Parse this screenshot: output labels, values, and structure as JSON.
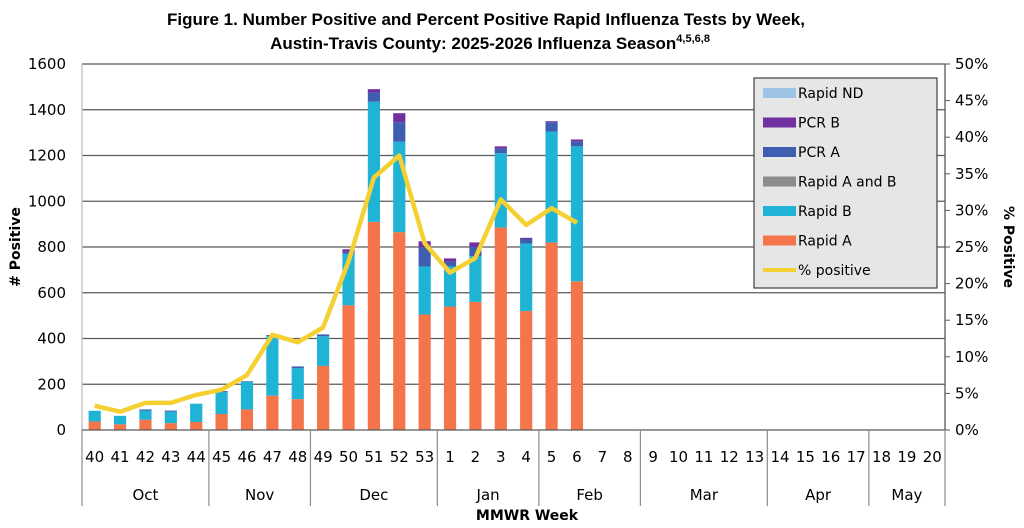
{
  "chart_data": {
    "type": "bar",
    "stacked": true,
    "title_line1": "Figure 1. Number Positive and Percent Positive Rapid Influenza Tests by Week,",
    "title_line2": "Austin-Travis County:  2025-2026 Influenza Season",
    "title_superscript": "4,5,6,8",
    "xlabel": "MMWR Week",
    "ylabel": "# Positive",
    "y2label": "% Positive",
    "ylim": [
      0,
      1600
    ],
    "y_ticks": [
      "0",
      "200",
      "400",
      "600",
      "800",
      "1000",
      "1200",
      "1400",
      "1600"
    ],
    "y2lim": [
      0,
      50
    ],
    "y2_ticks": [
      "0%",
      "5%",
      "10%",
      "15%",
      "20%",
      "25%",
      "30%",
      "35%",
      "40%",
      "45%",
      "50%"
    ],
    "grid": true,
    "legend_position": "top-right",
    "categories": [
      "40",
      "41",
      "42",
      "43",
      "44",
      "45",
      "46",
      "47",
      "48",
      "49",
      "50",
      "51",
      "52",
      "53",
      "1",
      "2",
      "3",
      "4",
      "5",
      "6",
      "7",
      "8",
      "9",
      "10",
      "11",
      "12",
      "13",
      "14",
      "15",
      "16",
      "17",
      "18",
      "19",
      "20"
    ],
    "month_groups": [
      {
        "label": "Oct",
        "weeks": 5
      },
      {
        "label": "Nov",
        "weeks": 4
      },
      {
        "label": "Dec",
        "weeks": 5
      },
      {
        "label": "Jan",
        "weeks": 4
      },
      {
        "label": "Feb",
        "weeks": 4
      },
      {
        "label": "Mar",
        "weeks": 5
      },
      {
        "label": "Apr",
        "weeks": 4
      },
      {
        "label": "May",
        "weeks": 3
      }
    ],
    "series": [
      {
        "name": "Rapid A",
        "color": "#F4754A",
        "values": [
          37,
          25,
          45,
          30,
          35,
          70,
          90,
          150,
          135,
          280,
          545,
          910,
          865,
          505,
          540,
          560,
          885,
          520,
          820,
          650,
          null,
          null,
          null,
          null,
          null,
          null,
          null,
          null,
          null,
          null,
          null,
          null,
          null,
          null
        ]
      },
      {
        "name": "Rapid B",
        "color": "#1FB3D6",
        "values": [
          47,
          37,
          40,
          50,
          80,
          95,
          120,
          260,
          135,
          130,
          225,
          525,
          395,
          210,
          175,
          200,
          325,
          295,
          485,
          590,
          null,
          null,
          null,
          null,
          null,
          null,
          null,
          null,
          null,
          null,
          null,
          null,
          null,
          null
        ]
      },
      {
        "name": "Rapid A and B",
        "color": "#8C8C8C",
        "values": [
          0,
          0,
          0,
          0,
          0,
          0,
          0,
          0,
          0,
          0,
          0,
          0,
          0,
          0,
          0,
          0,
          0,
          0,
          0,
          0,
          null,
          null,
          null,
          null,
          null,
          null,
          null,
          null,
          null,
          null,
          null,
          null,
          null,
          null
        ]
      },
      {
        "name": "PCR A",
        "color": "#3E5FB0",
        "values": [
          0,
          0,
          5,
          5,
          0,
          5,
          3,
          5,
          8,
          8,
          10,
          40,
          85,
          85,
          20,
          40,
          20,
          20,
          40,
          20,
          null,
          null,
          null,
          null,
          null,
          null,
          null,
          null,
          null,
          null,
          null,
          null,
          null,
          null
        ]
      },
      {
        "name": "PCR B",
        "color": "#7030A0",
        "values": [
          0,
          0,
          0,
          0,
          0,
          0,
          0,
          0,
          0,
          0,
          10,
          15,
          40,
          25,
          15,
          20,
          10,
          5,
          5,
          10,
          null,
          null,
          null,
          null,
          null,
          null,
          null,
          null,
          null,
          null,
          null,
          null,
          null,
          null
        ]
      },
      {
        "name": "Rapid ND",
        "color": "#9DC3E6",
        "values": [
          0,
          0,
          0,
          0,
          0,
          0,
          0,
          0,
          0,
          0,
          0,
          0,
          0,
          0,
          0,
          0,
          0,
          0,
          0,
          0,
          null,
          null,
          null,
          null,
          null,
          null,
          null,
          null,
          null,
          null,
          null,
          null,
          null,
          null
        ]
      }
    ],
    "line_series": {
      "name": "% positive",
      "color": "#F5D033",
      "axis": "right",
      "values": [
        3.3,
        2.5,
        3.7,
        3.7,
        4.8,
        5.5,
        7.5,
        13.0,
        12.0,
        14.0,
        23.0,
        34.5,
        37.5,
        25.5,
        21.5,
        23.5,
        31.5,
        28.0,
        30.3,
        28.3,
        null,
        null,
        null,
        null,
        null,
        null,
        null,
        null,
        null,
        null,
        null,
        null,
        null,
        null
      ]
    },
    "legend_order": [
      "Rapid ND",
      "PCR B",
      "PCR A",
      "Rapid A and B",
      "Rapid B",
      "Rapid A",
      "% positive"
    ]
  }
}
